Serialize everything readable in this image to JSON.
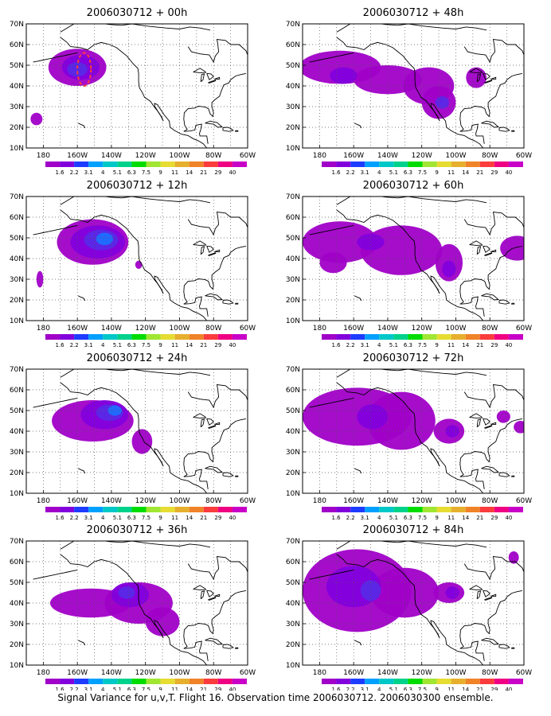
{
  "figure": {
    "caption": "Signal Variance for u,v,T. Flight 16. Observation time 2006030712. 2006030300 ensemble."
  },
  "axes": {
    "lat_labels": [
      "70N",
      "60N",
      "50N",
      "40N",
      "30N",
      "20N",
      "10N"
    ],
    "lon_labels": [
      "180",
      "160W",
      "140W",
      "120W",
      "100W",
      "80W",
      "60W"
    ]
  },
  "colorbar": {
    "levels": [
      "1.6",
      "2.2",
      "3.1",
      "4",
      "5.1",
      "6.3",
      "7.5",
      "9",
      "11",
      "14",
      "21",
      "29",
      "40"
    ],
    "colors": [
      "#a000c8",
      "#8200dc",
      "#1e3cff",
      "#00a0ff",
      "#00c8c8",
      "#00d28c",
      "#00dc00",
      "#a0e632",
      "#e6dc32",
      "#e6af2d",
      "#f08228",
      "#fa3c3c",
      "#f00082",
      "#c800c8"
    ]
  },
  "field_colors": {
    "level1": "#a000c8",
    "level2": "#8200dc",
    "level3": "#5a28e6",
    "level4": "#1e6eff",
    "level5": "#00b4d2",
    "highlight": "#ff3c3c"
  },
  "panels": [
    {
      "title": "2006030712 + 00h"
    },
    {
      "title": "2006030712 + 48h"
    },
    {
      "title": "2006030712 + 12h"
    },
    {
      "title": "2006030712 + 60h"
    },
    {
      "title": "2006030712 + 24h"
    },
    {
      "title": "2006030712 + 72h"
    },
    {
      "title": "2006030712 + 36h"
    },
    {
      "title": "2006030712 + 84h"
    }
  ]
}
